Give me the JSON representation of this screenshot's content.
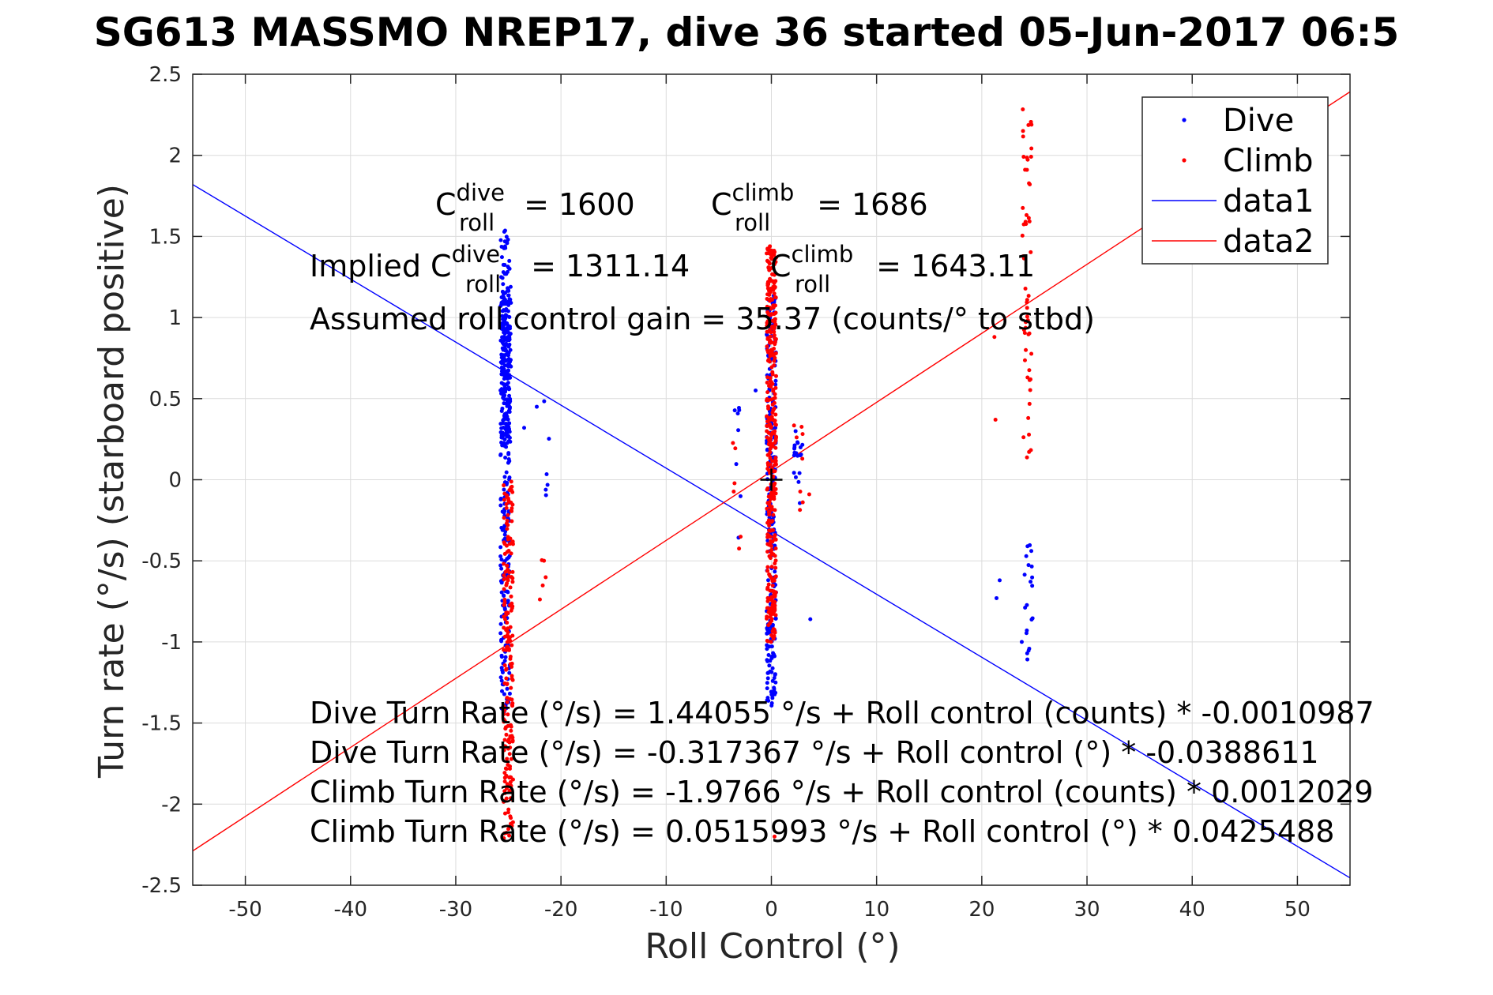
{
  "chart_data": {
    "type": "scatter",
    "title": "SG613 MASSMO NREP17, dive 36 started 05-Jun-2017 06:5",
    "xlabel": "Roll Control (°)",
    "ylabel": "Turn rate (°/s) (starboard positive)",
    "xlim": [
      -55,
      55
    ],
    "ylim": [
      -2.5,
      2.5
    ],
    "xticks": [
      -50,
      -40,
      -30,
      -20,
      -10,
      0,
      10,
      20,
      30,
      40,
      50
    ],
    "yticks": [
      2.5,
      2,
      1.5,
      1,
      0.5,
      0,
      -0.5,
      -1,
      -1.5,
      -2,
      -2.5
    ],
    "xtick_labels": [
      "-50",
      "-40",
      "-30",
      "-20",
      "-10",
      "0",
      "10",
      "20",
      "30",
      "40",
      "50"
    ],
    "ytick_labels": [
      "2.5",
      "2",
      "1.5",
      "1",
      "0.5",
      "0",
      "-0.5",
      "-1",
      "-1.5",
      "-2",
      "-2.5"
    ],
    "grid": true,
    "legend_position": "top-right",
    "series": [
      {
        "name": "Dive",
        "kind": "scatter",
        "color": "#0000ff",
        "clusters": [
          {
            "x": -25.3,
            "y_range": [
              -1.45,
              1.55
            ],
            "n": 260
          },
          {
            "x": -25.2,
            "y_range": [
              0.2,
              1.2
            ],
            "n": 150
          },
          {
            "x": -21.5,
            "y_range": [
              -0.25,
              0.5
            ],
            "n": 6
          },
          {
            "x": 0.0,
            "y_range": [
              -1.4,
              1.2
            ],
            "n": 260
          },
          {
            "x": 2.6,
            "y_range": [
              -0.2,
              0.3
            ],
            "n": 18
          },
          {
            "x": -3.3,
            "y_range": [
              -0.52,
              0.7
            ],
            "n": 8
          },
          {
            "x": 24.5,
            "y_range": [
              -1.12,
              -0.4
            ],
            "n": 20
          }
        ],
        "points": [
          [
            -22.3,
            0.45
          ],
          [
            -23.5,
            0.32
          ],
          [
            -1.5,
            0.55
          ],
          [
            3.7,
            -0.86
          ],
          [
            21.7,
            -0.62
          ],
          [
            21.4,
            -0.73
          ],
          [
            23.8,
            -1.0
          ],
          [
            2.2,
            0.2
          ]
        ]
      },
      {
        "name": "Climb",
        "kind": "scatter",
        "color": "#ff0000",
        "clusters": [
          {
            "x": -25.0,
            "y_range": [
              -2.22,
              0.0
            ],
            "n": 200
          },
          {
            "x": 0.0,
            "y_range": [
              -1.0,
              1.45
            ],
            "n": 360
          },
          {
            "x": 24.3,
            "y_range": [
              0.1,
              2.3
            ],
            "n": 55
          },
          {
            "x": -21.8,
            "y_range": [
              -0.75,
              -0.22
            ],
            "n": 5
          },
          {
            "x": -3.3,
            "y_range": [
              -0.45,
              0.25
            ],
            "n": 6
          },
          {
            "x": 2.6,
            "y_range": [
              -0.2,
              0.35
            ],
            "n": 8
          }
        ],
        "points": [
          [
            21.3,
            0.37
          ],
          [
            21.2,
            0.88
          ],
          [
            3.6,
            -0.09
          ],
          [
            0.3,
            -2.2
          ]
        ]
      },
      {
        "name": "data1",
        "kind": "line",
        "color": "#0000ff",
        "slope": -0.0388611,
        "intercept": -0.317367
      },
      {
        "name": "data2",
        "kind": "line",
        "color": "#ff0000",
        "slope": 0.0425488,
        "intercept": 0.0515993
      }
    ],
    "marker": {
      "x": 0,
      "y": 0,
      "symbol": "+",
      "color": "#000000"
    },
    "annotations": {
      "c_dive_prefix": "C",
      "c_dive_sup": "dive",
      "c_dive_sub": "roll",
      "c_dive_value": " = 1600",
      "c_climb_prefix": "C",
      "c_climb_sup": "climb",
      "c_climb_sub": "roll",
      "c_climb_value": " = 1686",
      "implied_prefix": "Implied C",
      "implied_dive_sup": "dive",
      "implied_dive_sub": "roll",
      "implied_dive_value": " = 1311.14",
      "implied_climb_prefix": "C",
      "implied_climb_sup": "climb",
      "implied_climb_sub": "roll",
      "implied_climb_value": " = 1643.11",
      "gain": "Assumed roll control gain = 35.37 (counts/° to stbd)",
      "eq1": "Dive Turn Rate (°/s) = 1.44055 °/s + Roll control (counts) * -0.0010987",
      "eq2": "Dive Turn Rate (°/s) = -0.317367 °/s + Roll control (°) * -0.0388611",
      "eq3": "Climb Turn Rate (°/s) = -1.9766 °/s + Roll control (counts) * 0.0012029",
      "eq4": "Climb Turn Rate (°/s) = 0.0515993 °/s + Roll control (°) * 0.0425488"
    }
  }
}
